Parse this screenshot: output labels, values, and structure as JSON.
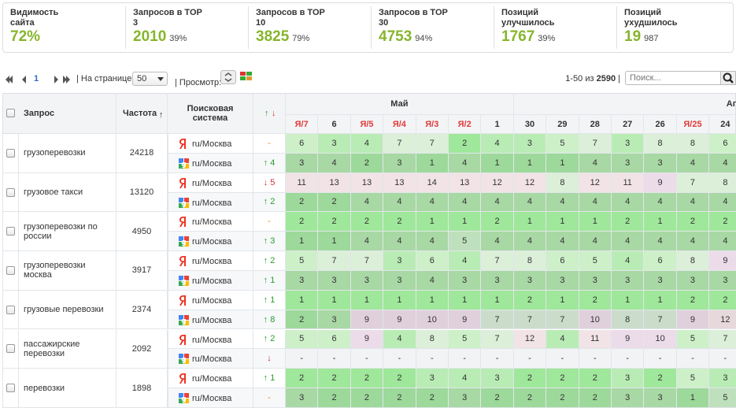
{
  "stats": [
    {
      "label": "Видимость сайта",
      "value": "72%"
    },
    {
      "label": "Запросов в TOP 3",
      "value": "2010",
      "percent": "39%"
    },
    {
      "label": "Запросов в TOP 10",
      "value": "3825",
      "percent": "79%"
    },
    {
      "label": "Запросов в TOP 30",
      "value": "4753",
      "percent": "94%"
    },
    {
      "label": "Позиций улучшилось",
      "value": "1767",
      "percent": "39%"
    },
    {
      "label": "Позиций ухудшилось",
      "value": "19",
      "percent": "987"
    }
  ],
  "toolbar": {
    "page": "1",
    "per_page_label": "| На странице:",
    "per_page": "50",
    "view_label": "| Просмотр:",
    "range": "1-50 из",
    "total": "2590",
    "separator": "|",
    "search_placeholder": "Поиск..."
  },
  "table": {
    "headers": {
      "query": "Запрос",
      "frequency": "Частота",
      "sort": "↑",
      "engine": "Поисковая система",
      "change_up": "↑",
      "change_down": "↓",
      "month": "Май",
      "next_month": "Ап"
    },
    "dates": [
      "Я/7",
      "6",
      "Я/5",
      "Я/4",
      "Я/3",
      "Я/2",
      "1",
      "30",
      "29",
      "28",
      "27",
      "26",
      "Я/25",
      "24"
    ],
    "rows": [
      {
        "query": "грузоперевозки",
        "frequency": "24218",
        "engines": [
          {
            "region": "ru/Москва",
            "change": "-",
            "positions": [
              6,
              3,
              4,
              7,
              7,
              2,
              4,
              3,
              5,
              7,
              3,
              8,
              8,
              6
            ]
          },
          {
            "region": "ru/Москва",
            "change": "↑ 4",
            "positions": [
              3,
              4,
              2,
              3,
              1,
              4,
              1,
              1,
              1,
              4,
              3,
              3,
              4,
              4
            ]
          }
        ]
      },
      {
        "query": "грузовое такси",
        "frequency": "13120",
        "engines": [
          {
            "region": "ru/Москва",
            "change": "↓ 5",
            "positions": [
              11,
              13,
              13,
              13,
              14,
              13,
              12,
              12,
              8,
              12,
              11,
              9,
              7,
              8
            ]
          },
          {
            "region": "ru/Москва",
            "change": "↑ 2",
            "positions": [
              2,
              2,
              4,
              4,
              4,
              4,
              4,
              4,
              4,
              4,
              4,
              4,
              4,
              4
            ]
          }
        ]
      },
      {
        "query": "грузоперевозки по россии",
        "frequency": "4950",
        "engines": [
          {
            "region": "ru/Москва",
            "change": "-",
            "positions": [
              2,
              2,
              2,
              2,
              1,
              1,
              2,
              1,
              1,
              1,
              2,
              1,
              2,
              2
            ]
          },
          {
            "region": "ru/Москва",
            "change": "↑ 3",
            "positions": [
              1,
              1,
              4,
              4,
              4,
              5,
              4,
              4,
              4,
              4,
              4,
              4,
              4,
              4
            ]
          }
        ]
      },
      {
        "query": "грузоперевозки москва",
        "frequency": "3917",
        "engines": [
          {
            "region": "ru/Москва",
            "change": "↑ 2",
            "positions": [
              5,
              7,
              7,
              3,
              6,
              4,
              7,
              8,
              6,
              5,
              4,
              6,
              8,
              9
            ]
          },
          {
            "region": "ru/Москва",
            "change": "↑ 1",
            "positions": [
              3,
              3,
              3,
              3,
              4,
              3,
              3,
              3,
              3,
              3,
              3,
              3,
              3,
              3
            ]
          }
        ]
      },
      {
        "query": "грузовые перевозки",
        "frequency": "2374",
        "engines": [
          {
            "region": "ru/Москва",
            "change": "↑ 1",
            "positions": [
              1,
              1,
              1,
              1,
              1,
              1,
              1,
              2,
              1,
              2,
              1,
              1,
              2,
              2
            ]
          },
          {
            "region": "ru/Москва",
            "change": "↑ 8",
            "positions": [
              2,
              3,
              9,
              9,
              10,
              9,
              7,
              7,
              7,
              10,
              8,
              7,
              9,
              12
            ]
          }
        ]
      },
      {
        "query": "пассажирские перевозки",
        "frequency": "2092",
        "engines": [
          {
            "region": "ru/Москва",
            "change": "↑ 2",
            "positions": [
              5,
              6,
              9,
              4,
              8,
              5,
              7,
              12,
              4,
              11,
              9,
              10,
              5,
              7
            ]
          },
          {
            "region": "ru/Москва",
            "change": "↓",
            "positions": [
              "-",
              "-",
              "-",
              "-",
              "-",
              "-",
              "-",
              "-",
              "-",
              "-",
              "-",
              "-",
              "-",
              "-"
            ]
          }
        ]
      },
      {
        "query": "перевозки",
        "frequency": "1898",
        "engines": [
          {
            "region": "ru/Москва",
            "change": "↑ 1",
            "positions": [
              2,
              2,
              2,
              2,
              3,
              4,
              3,
              2,
              2,
              2,
              3,
              2,
              5,
              3
            ]
          },
          {
            "region": "ru/Москва",
            "change": "-",
            "positions": [
              3,
              2,
              2,
              2,
              2,
              3,
              2,
              2,
              2,
              2,
              3,
              3,
              1,
              5
            ]
          }
        ]
      }
    ]
  }
}
